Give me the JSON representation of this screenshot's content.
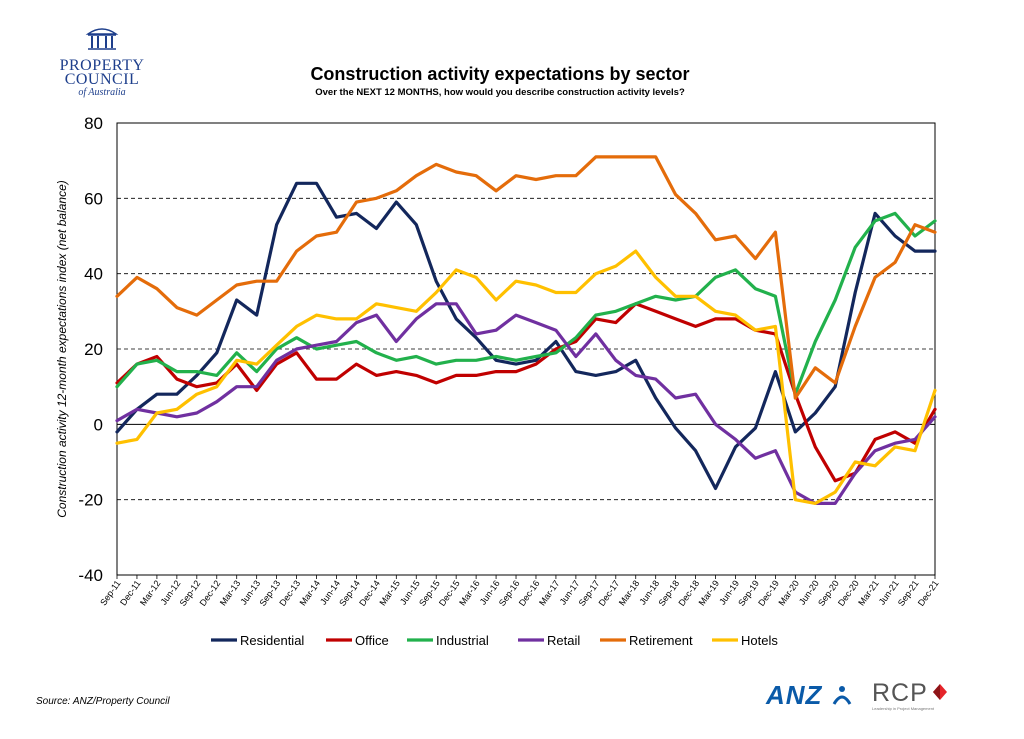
{
  "logos": {
    "property_council_lines": [
      "PROPERTY",
      "COUNCIL"
    ],
    "property_council_sub": "of Australia",
    "anz": "ANZ",
    "rcp": "RCP",
    "rcp_tagline": "Leadership in Project Management"
  },
  "source": "Source: ANZ/Property Council",
  "colors": {
    "Residential": "#13275c",
    "Office": "#c00000",
    "Industrial": "#22b14c",
    "Retail": "#7030a0",
    "Retirement": "#e46c0a",
    "Hotels": "#ffc000"
  },
  "chart_data": {
    "type": "line",
    "title": "Construction activity expectations by sector",
    "subtitle": "Over the NEXT 12 MONTHS, how would you describe construction activity levels?",
    "xlabel": "",
    "ylabel": "Construction activity 12-month expectations index (net balance)",
    "ylim": [
      -40,
      80
    ],
    "yticks": [
      -40,
      -20,
      0,
      20,
      40,
      60,
      80
    ],
    "grid": "dashed horizontal at 20, 40, 60 and dashed at -20",
    "legend": "bottom",
    "categories": [
      "Sep-11",
      "Dec-11",
      "Mar-12",
      "Jun-12",
      "Sep-12",
      "Dec-12",
      "Mar-13",
      "Jun-13",
      "Sep-13",
      "Dec-13",
      "Mar-14",
      "Jun-14",
      "Sep-14",
      "Dec-14",
      "Mar-15",
      "Jun-15",
      "Sep-15",
      "Dec-15",
      "Mar-16",
      "Jun-16",
      "Sep-16",
      "Dec-16",
      "Mar-17",
      "Jun-17",
      "Sep-17",
      "Dec-17",
      "Mar-18",
      "Jun-18",
      "Sep-18",
      "Dec-18",
      "Mar-19",
      "Jun-19",
      "Sep-19",
      "Dec-19",
      "Mar-20",
      "Jun-20",
      "Sep-20",
      "Dec-20",
      "Mar-21",
      "Jun-21",
      "Sep-21",
      "Dec-21"
    ],
    "series": [
      {
        "name": "Residential",
        "values": [
          -2,
          4,
          8,
          8,
          13,
          19,
          33,
          29,
          53,
          64,
          64,
          55,
          56,
          52,
          59,
          53,
          38,
          28,
          23,
          17,
          16,
          17,
          22,
          14,
          13,
          14,
          17,
          7,
          -1,
          -7,
          -17,
          -6,
          -1,
          14,
          -2,
          3,
          10,
          35,
          56,
          50,
          46,
          46
        ]
      },
      {
        "name": "Office",
        "values": [
          11,
          16,
          18,
          12,
          10,
          11,
          16,
          9,
          16,
          19,
          12,
          12,
          16,
          13,
          14,
          13,
          11,
          13,
          13,
          14,
          14,
          16,
          20,
          22,
          28,
          27,
          32,
          30,
          28,
          26,
          28,
          28,
          25,
          24,
          8,
          -6,
          -15,
          -13,
          -4,
          -2,
          -5,
          4
        ]
      },
      {
        "name": "Industrial",
        "values": [
          10,
          16,
          17,
          14,
          14,
          13,
          19,
          14,
          20,
          23,
          20,
          21,
          22,
          19,
          17,
          18,
          16,
          17,
          17,
          18,
          17,
          18,
          19,
          23,
          29,
          30,
          32,
          34,
          33,
          34,
          39,
          41,
          36,
          34,
          8,
          22,
          33,
          47,
          54,
          56,
          50,
          54
        ]
      },
      {
        "name": "Retail",
        "values": [
          1,
          4,
          3,
          2,
          3,
          6,
          10,
          10,
          17,
          20,
          21,
          22,
          27,
          29,
          22,
          28,
          32,
          32,
          24,
          25,
          29,
          27,
          25,
          18,
          24,
          17,
          13,
          12,
          7,
          8,
          0,
          -4,
          -9,
          -7,
          -18,
          -21,
          -21,
          -13,
          -7,
          -5,
          -4,
          2
        ]
      },
      {
        "name": "Retirement",
        "values": [
          34,
          39,
          36,
          31,
          29,
          33,
          37,
          38,
          38,
          46,
          50,
          51,
          59,
          60,
          62,
          66,
          69,
          67,
          66,
          62,
          66,
          65,
          66,
          66,
          71,
          71,
          71,
          71,
          61,
          56,
          49,
          50,
          44,
          51,
          7,
          15,
          11,
          26,
          39,
          43,
          53,
          51
        ]
      },
      {
        "name": "Hotels",
        "values": [
          -5,
          -4,
          3,
          4,
          8,
          10,
          17,
          16,
          21,
          26,
          29,
          28,
          28,
          32,
          31,
          30,
          35,
          41,
          39,
          33,
          38,
          37,
          35,
          35,
          40,
          42,
          46,
          39,
          34,
          34,
          30,
          29,
          25,
          26,
          -20,
          -21,
          -18,
          -10,
          -11,
          -6,
          -7,
          9
        ]
      }
    ]
  }
}
